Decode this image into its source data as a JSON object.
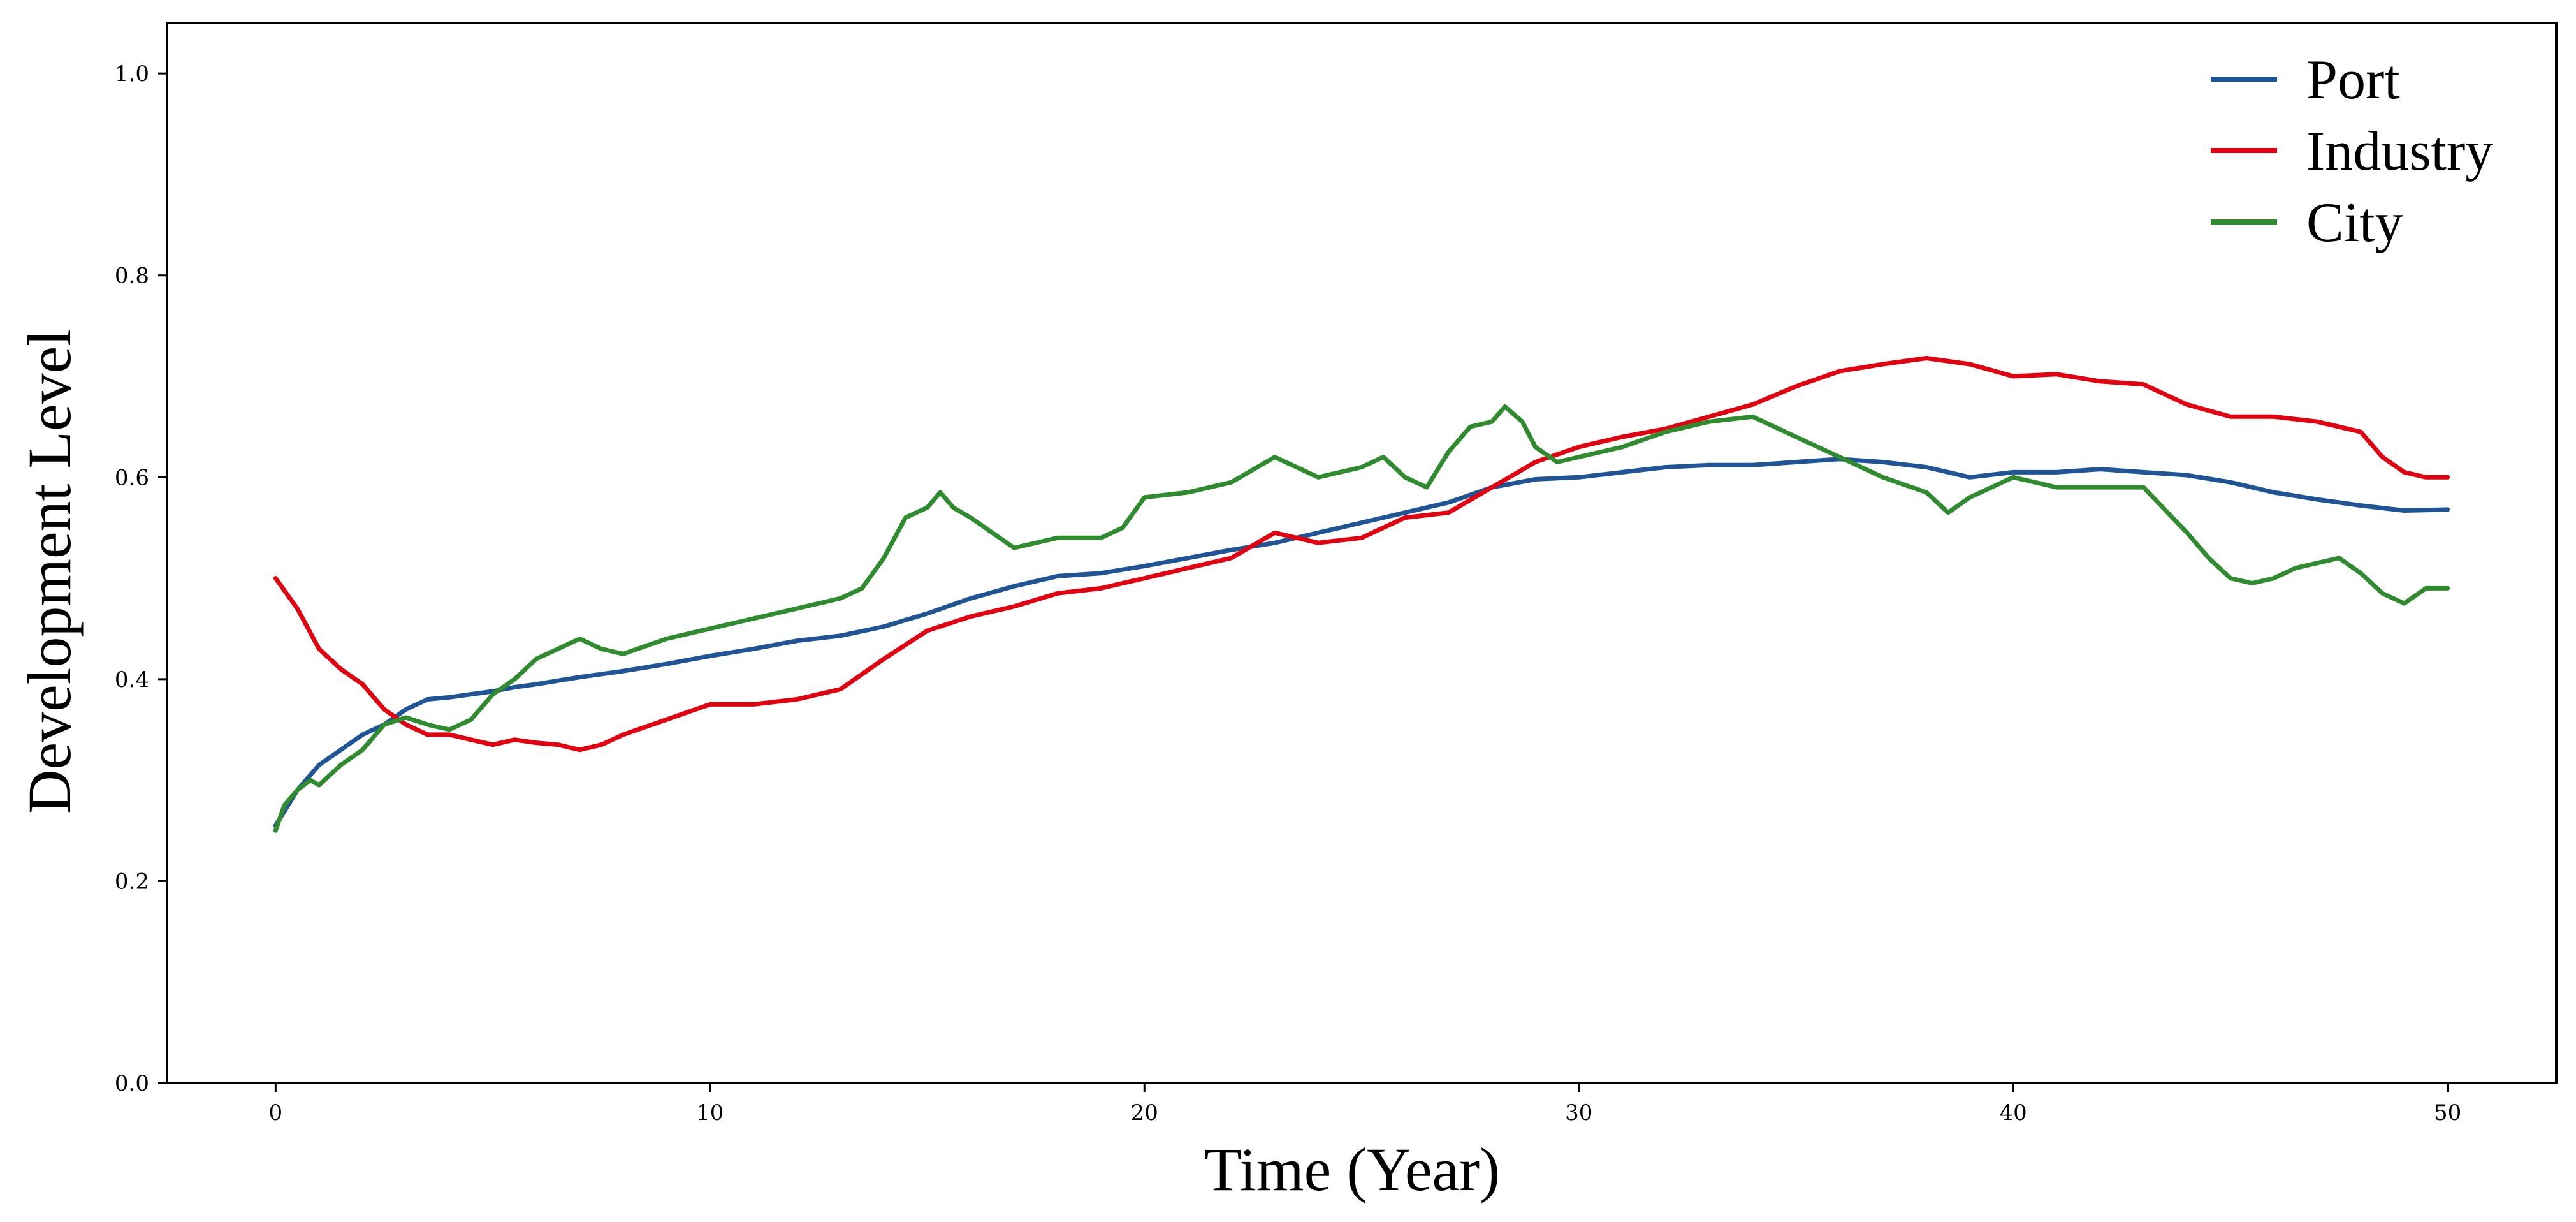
{
  "chart_data": {
    "type": "line",
    "title": "",
    "xlabel": "Time (Year)",
    "ylabel": "Development Level",
    "xlim": [
      -2.5,
      52.5
    ],
    "ylim": [
      0.0,
      1.05
    ],
    "xticks": [
      0,
      10,
      20,
      30,
      40,
      50
    ],
    "yticks": [
      0.0,
      0.2,
      0.4,
      0.6,
      0.8,
      1.0
    ],
    "xtick_labels": [
      "0",
      "10",
      "20",
      "30",
      "40",
      "50"
    ],
    "ytick_labels": [
      "0.0",
      "0.2",
      "0.4",
      "0.6",
      "0.8",
      "1.0"
    ],
    "grid": false,
    "legend_position": "top-right",
    "series": [
      {
        "name": "Port",
        "color": "#1f5597",
        "x": [
          0,
          0.5,
          1,
          1.5,
          2,
          2.5,
          3,
          3.5,
          4,
          4.5,
          5,
          5.5,
          6,
          7,
          8,
          9,
          10,
          11,
          12,
          13,
          14,
          15,
          16,
          17,
          18,
          19,
          20,
          21,
          22,
          23,
          24,
          25,
          26,
          27,
          28,
          29,
          30,
          31,
          32,
          33,
          34,
          35,
          36,
          37,
          38,
          39,
          40,
          41,
          42,
          43,
          44,
          45,
          46,
          47,
          48,
          49,
          50
        ],
        "y": [
          0.255,
          0.29,
          0.315,
          0.33,
          0.345,
          0.355,
          0.37,
          0.38,
          0.382,
          0.385,
          0.388,
          0.392,
          0.395,
          0.402,
          0.408,
          0.415,
          0.423,
          0.43,
          0.438,
          0.443,
          0.452,
          0.465,
          0.48,
          0.492,
          0.502,
          0.505,
          0.512,
          0.52,
          0.528,
          0.535,
          0.545,
          0.555,
          0.565,
          0.575,
          0.59,
          0.598,
          0.6,
          0.605,
          0.61,
          0.612,
          0.612,
          0.615,
          0.618,
          0.615,
          0.61,
          0.6,
          0.605,
          0.605,
          0.608,
          0.605,
          0.602,
          0.595,
          0.585,
          0.578,
          0.572,
          0.567,
          0.568
        ]
      },
      {
        "name": "Industry",
        "color": "#e3000f",
        "x": [
          0,
          0.5,
          1,
          1.5,
          2,
          2.5,
          3,
          3.5,
          4,
          4.5,
          5,
          5.5,
          6,
          6.5,
          7,
          7.5,
          8,
          9,
          10,
          11,
          12,
          13,
          14,
          15,
          16,
          17,
          18,
          19,
          20,
          21,
          22,
          23,
          24,
          25,
          26,
          27,
          28,
          29,
          30,
          31,
          32,
          33,
          34,
          35,
          36,
          37,
          38,
          39,
          40,
          41,
          42,
          43,
          44,
          45,
          46,
          47,
          48,
          48.5,
          49,
          49.5,
          50
        ],
        "y": [
          0.5,
          0.47,
          0.43,
          0.41,
          0.395,
          0.37,
          0.355,
          0.345,
          0.345,
          0.34,
          0.335,
          0.34,
          0.337,
          0.335,
          0.33,
          0.335,
          0.345,
          0.36,
          0.375,
          0.375,
          0.38,
          0.39,
          0.42,
          0.448,
          0.462,
          0.472,
          0.485,
          0.49,
          0.5,
          0.51,
          0.52,
          0.545,
          0.535,
          0.54,
          0.56,
          0.565,
          0.59,
          0.615,
          0.63,
          0.64,
          0.648,
          0.66,
          0.672,
          0.69,
          0.705,
          0.712,
          0.718,
          0.712,
          0.7,
          0.702,
          0.695,
          0.692,
          0.672,
          0.66,
          0.66,
          0.655,
          0.645,
          0.62,
          0.605,
          0.6,
          0.6
        ]
      },
      {
        "name": "City",
        "color": "#2e8b2e",
        "x": [
          0,
          0.2,
          0.5,
          0.8,
          1,
          1.5,
          2,
          2.5,
          3,
          3.5,
          4,
          4.5,
          5,
          5.5,
          6,
          6.5,
          7,
          7.5,
          8,
          9,
          10,
          11,
          12,
          13,
          13.5,
          14,
          14.5,
          15,
          15.3,
          15.6,
          16,
          17,
          18,
          19,
          19.5,
          20,
          21,
          22,
          23,
          24,
          25,
          25.5,
          26,
          26.5,
          27,
          27.5,
          28,
          28.3,
          28.7,
          29,
          29.5,
          30,
          31,
          32,
          33,
          34,
          35,
          36,
          37,
          38,
          38.5,
          39,
          40,
          41,
          42,
          43,
          44,
          44.5,
          45,
          45.5,
          46,
          46.5,
          47,
          47.5,
          48,
          48.5,
          49,
          49.5,
          50
        ],
        "y": [
          0.25,
          0.275,
          0.29,
          0.3,
          0.295,
          0.315,
          0.33,
          0.355,
          0.362,
          0.355,
          0.35,
          0.36,
          0.385,
          0.4,
          0.42,
          0.43,
          0.44,
          0.43,
          0.425,
          0.44,
          0.45,
          0.46,
          0.47,
          0.48,
          0.49,
          0.52,
          0.56,
          0.57,
          0.585,
          0.57,
          0.56,
          0.53,
          0.54,
          0.54,
          0.55,
          0.58,
          0.585,
          0.595,
          0.62,
          0.6,
          0.61,
          0.62,
          0.6,
          0.59,
          0.625,
          0.65,
          0.655,
          0.67,
          0.655,
          0.63,
          0.615,
          0.62,
          0.63,
          0.645,
          0.655,
          0.66,
          0.64,
          0.62,
          0.6,
          0.585,
          0.565,
          0.58,
          0.6,
          0.59,
          0.59,
          0.59,
          0.545,
          0.52,
          0.5,
          0.495,
          0.5,
          0.51,
          0.515,
          0.52,
          0.505,
          0.485,
          0.475,
          0.49,
          0.49
        ]
      }
    ]
  }
}
